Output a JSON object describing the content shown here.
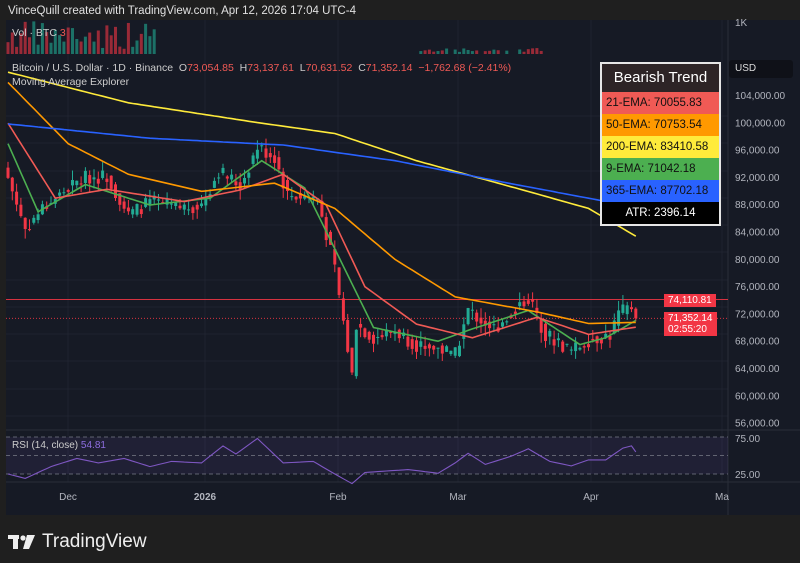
{
  "header": {
    "text": "VinceQuill created with TradingView.com, Apr 12, 2026 17:04 UTC-4"
  },
  "volume": {
    "label": "Vol · BTC",
    "value": "3"
  },
  "symbol": {
    "name": "Bitcoin / U.S. Dollar · 1D · Binance",
    "o_label": "O",
    "o": "73,054.85",
    "h_label": "H",
    "h": "73,137.61",
    "l_label": "L",
    "l": "70,631.52",
    "c_label": "C",
    "c": "71,352.14",
    "change": "−1,762.68 (−2.41%)"
  },
  "indicator": {
    "name": "Moving Average Explorer"
  },
  "legend": {
    "title": "Bearish Trend",
    "rows": [
      {
        "text": "21-EMA: 70055.83",
        "color": "#f05a55"
      },
      {
        "text": "50-EMA: 70753.54",
        "color": "#ff9900"
      },
      {
        "text": "200-EMA: 83410.58",
        "color": "#ffeb3b"
      },
      {
        "text": "9-EMA: 71042.18",
        "color": "#4caf50"
      },
      {
        "text": "365-EMA: 87702.18",
        "color": "#2962ff"
      }
    ],
    "atr": "ATR: 2396.14"
  },
  "price_axis": {
    "currency": "USD",
    "top_label": "1K",
    "ticks": [
      "104,000.00",
      "100,000.00",
      "96,000.00",
      "92,000.00",
      "88,000.00",
      "84,000.00",
      "80,000.00",
      "76,000.00",
      "72,000.00",
      "68,000.00",
      "64,000.00",
      "60,000.00",
      "56,000.00"
    ],
    "high_line": "74,110.81",
    "last_price": "71,352.14",
    "countdown": "02:55:20"
  },
  "rsi": {
    "label": "RSI (14, close)",
    "value": "54.81",
    "upper": "75.00",
    "lower": "25.00"
  },
  "time_axis": [
    "Dec",
    "2026",
    "Feb",
    "Mar",
    "Apr",
    "Ma"
  ],
  "brand": "TradingView",
  "chart_data": {
    "type": "candlestick",
    "x_range": [
      "2025-11-17",
      "2026-04-12"
    ],
    "ylim": [
      54000,
      110000
    ],
    "close_keypoints": [
      [
        "2025-11-17",
        92000
      ],
      [
        "2025-11-21",
        84500
      ],
      [
        "2025-11-25",
        87500
      ],
      [
        "2025-12-01",
        90500
      ],
      [
        "2025-12-05",
        92000
      ],
      [
        "2025-12-10",
        92300
      ],
      [
        "2025-12-15",
        86500
      ],
      [
        "2025-12-20",
        88500
      ],
      [
        "2025-12-26",
        87500
      ],
      [
        "2026-01-01",
        88000
      ],
      [
        "2026-01-05",
        93000
      ],
      [
        "2026-01-10",
        90800
      ],
      [
        "2026-01-14",
        96500
      ],
      [
        "2026-01-18",
        95000
      ],
      [
        "2026-01-21",
        89500
      ],
      [
        "2026-01-28",
        89000
      ],
      [
        "2026-02-01",
        78500
      ],
      [
        "2026-02-05",
        63000
      ],
      [
        "2026-02-06",
        70500
      ],
      [
        "2026-02-10",
        68500
      ],
      [
        "2026-02-15",
        69500
      ],
      [
        "2026-02-20",
        67500
      ],
      [
        "2026-02-25",
        67000
      ],
      [
        "2026-03-01",
        66000
      ],
      [
        "2026-03-04",
        72500
      ],
      [
        "2026-03-10",
        69800
      ],
      [
        "2026-03-16",
        73500
      ],
      [
        "2026-03-18",
        74300
      ],
      [
        "2026-03-22",
        69000
      ],
      [
        "2026-03-28",
        66500
      ],
      [
        "2026-04-01",
        68200
      ],
      [
        "2026-04-06",
        68900
      ],
      [
        "2026-04-08",
        72000
      ],
      [
        "2026-04-11",
        73050
      ],
      [
        "2026-04-12",
        71352.14
      ]
    ],
    "series": [
      {
        "name": "9-EMA",
        "color": "#4caf50",
        "keypoints": [
          [
            "2025-11-17",
            97000
          ],
          [
            "2025-11-24",
            87000
          ],
          [
            "2025-12-05",
            91000
          ],
          [
            "2025-12-20",
            88000
          ],
          [
            "2026-01-03",
            89000
          ],
          [
            "2026-01-15",
            94500
          ],
          [
            "2026-01-25",
            90500
          ],
          [
            "2026-02-03",
            79000
          ],
          [
            "2026-02-10",
            70000
          ],
          [
            "2026-02-25",
            68000
          ],
          [
            "2026-03-05",
            69800
          ],
          [
            "2026-03-18",
            72500
          ],
          [
            "2026-03-30",
            67500
          ],
          [
            "2026-04-05",
            68500
          ],
          [
            "2026-04-12",
            71042.18
          ]
        ]
      },
      {
        "name": "21-EMA",
        "color": "#f05a55",
        "keypoints": [
          [
            "2025-11-17",
            100000
          ],
          [
            "2025-11-28",
            89000
          ],
          [
            "2025-12-10",
            90300
          ],
          [
            "2025-12-28",
            88500
          ],
          [
            "2026-01-10",
            90200
          ],
          [
            "2026-01-20",
            92500
          ],
          [
            "2026-01-30",
            88000
          ],
          [
            "2026-02-08",
            76000
          ],
          [
            "2026-02-20",
            70500
          ],
          [
            "2026-03-05",
            68500
          ],
          [
            "2026-03-20",
            71500
          ],
          [
            "2026-04-01",
            69000
          ],
          [
            "2026-04-12",
            70055.83
          ]
        ]
      },
      {
        "name": "50-EMA",
        "color": "#ff9900",
        "keypoints": [
          [
            "2025-11-17",
            106000
          ],
          [
            "2025-12-01",
            97000
          ],
          [
            "2025-12-15",
            92500
          ],
          [
            "2026-01-01",
            90000
          ],
          [
            "2026-01-18",
            91200
          ],
          [
            "2026-02-01",
            87500
          ],
          [
            "2026-02-15",
            80000
          ],
          [
            "2026-03-01",
            74500
          ],
          [
            "2026-03-20",
            72300
          ],
          [
            "2026-04-01",
            70600
          ],
          [
            "2026-04-12",
            70753.54
          ]
        ]
      },
      {
        "name": "200-EMA",
        "color": "#ffeb3b",
        "keypoints": [
          [
            "2025-11-17",
            107500
          ],
          [
            "2025-12-15",
            103000
          ],
          [
            "2026-01-15",
            100000
          ],
          [
            "2026-02-01",
            98500
          ],
          [
            "2026-02-20",
            94500
          ],
          [
            "2026-03-15",
            90500
          ],
          [
            "2026-04-01",
            87500
          ],
          [
            "2026-04-12",
            83410.58
          ]
        ]
      },
      {
        "name": "365-EMA",
        "color": "#2962ff",
        "keypoints": [
          [
            "2025-11-17",
            99900
          ],
          [
            "2025-12-20",
            97800
          ],
          [
            "2026-01-20",
            96800
          ],
          [
            "2026-02-15",
            94500
          ],
          [
            "2026-03-15",
            91000
          ],
          [
            "2026-04-12",
            87702.18
          ]
        ]
      },
      {
        "name": "RSI",
        "color": "#7e57c2",
        "keypoints": [
          [
            "2025-11-17",
            25
          ],
          [
            "2025-11-21",
            19
          ],
          [
            "2025-11-27",
            35
          ],
          [
            "2025-12-03",
            46
          ],
          [
            "2025-12-08",
            40
          ],
          [
            "2025-12-14",
            46
          ],
          [
            "2025-12-20",
            35
          ],
          [
            "2025-12-25",
            42
          ],
          [
            "2026-01-01",
            40
          ],
          [
            "2026-01-06",
            63
          ],
          [
            "2026-01-09",
            52
          ],
          [
            "2026-01-14",
            73
          ],
          [
            "2026-01-20",
            40
          ],
          [
            "2026-01-27",
            42
          ],
          [
            "2026-02-01",
            25
          ],
          [
            "2026-02-05",
            12
          ],
          [
            "2026-02-08",
            27
          ],
          [
            "2026-02-18",
            31
          ],
          [
            "2026-02-25",
            26
          ],
          [
            "2026-03-01",
            40
          ],
          [
            "2026-03-04",
            53
          ],
          [
            "2026-03-08",
            38
          ],
          [
            "2026-03-14",
            49
          ],
          [
            "2026-03-18",
            59
          ],
          [
            "2026-03-23",
            42
          ],
          [
            "2026-03-28",
            36
          ],
          [
            "2026-04-01",
            44
          ],
          [
            "2026-04-05",
            44
          ],
          [
            "2026-04-09",
            60
          ],
          [
            "2026-04-11",
            63
          ],
          [
            "2026-04-12",
            54.81
          ]
        ]
      }
    ]
  }
}
